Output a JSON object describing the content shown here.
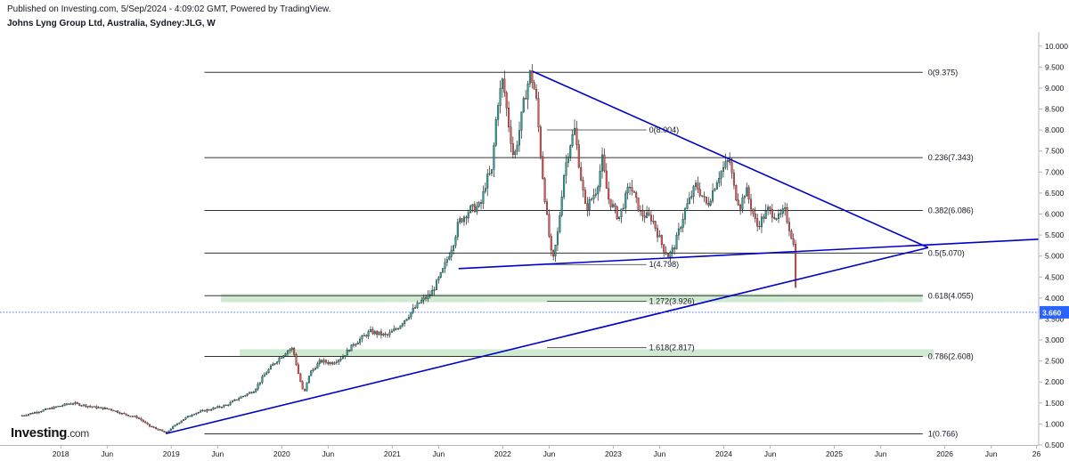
{
  "header": {
    "published": "Published on Investing.com, 5/Sep/2024 - 4:09:02 GMT, Powered by TradingView.",
    "symbol_title": "Johns Lyng Group Ltd, Australia, Sydney:JLG, W"
  },
  "logo": {
    "brand": "Investing",
    "suffix": ".com"
  },
  "chart_data": {
    "type": "candlestick",
    "interval": "W",
    "x_tick_labels": [
      "2018",
      "Jun",
      "2019",
      "Jun",
      "2020",
      "Jun",
      "2021",
      "Jun",
      "2022",
      "Jun",
      "2023",
      "Jun",
      "2024",
      "Jun",
      "2025",
      "Jun",
      "2026",
      "Jun",
      "26"
    ],
    "x_ticks": [
      "2018.0",
      "2018.42",
      "2019.0",
      "2019.42",
      "2020.0",
      "2020.42",
      "2021.0",
      "2021.42",
      "2022.0",
      "2022.42",
      "2023.0",
      "2023.42",
      "2024.0",
      "2024.42",
      "2025.0",
      "2025.42",
      "2026.0",
      "2026.42",
      "2026.83"
    ],
    "x_range": [
      2017.45,
      2026.85
    ],
    "y_range": [
      0.5,
      10.25
    ],
    "y_tick_labels": [
      "0.500",
      "1.000",
      "1.500",
      "2.000",
      "2.500",
      "3.000",
      "3.500",
      "4.000",
      "4.500",
      "5.000",
      "5.500",
      "6.000",
      "6.500",
      "7.000",
      "7.500",
      "8.000",
      "8.500",
      "9.000",
      "9.500",
      "10.000"
    ],
    "last_price": "3.660",
    "last_price_value": 3.66,
    "colors": {
      "up": "#26a69a",
      "down": "#ef5350",
      "trend": "#0000cc",
      "fib": "#333333",
      "zone": "#c8e6c9",
      "last": "#2962ff"
    },
    "price_path": [
      [
        2017.65,
        1.2
      ],
      [
        2017.8,
        1.3
      ],
      [
        2017.95,
        1.4
      ],
      [
        2018.1,
        1.5
      ],
      [
        2018.2,
        1.45
      ],
      [
        2018.3,
        1.4
      ],
      [
        2018.45,
        1.35
      ],
      [
        2018.55,
        1.25
      ],
      [
        2018.7,
        1.15
      ],
      [
        2018.8,
        0.95
      ],
      [
        2018.9,
        0.85
      ],
      [
        2018.95,
        0.78
      ],
      [
        2019.0,
        0.9
      ],
      [
        2019.1,
        1.1
      ],
      [
        2019.2,
        1.25
      ],
      [
        2019.35,
        1.35
      ],
      [
        2019.5,
        1.45
      ],
      [
        2019.6,
        1.6
      ],
      [
        2019.75,
        1.8
      ],
      [
        2019.85,
        2.2
      ],
      [
        2019.95,
        2.5
      ],
      [
        2020.05,
        2.75
      ],
      [
        2020.1,
        2.8
      ],
      [
        2020.15,
        2.2
      ],
      [
        2020.2,
        1.7
      ],
      [
        2020.25,
        2.2
      ],
      [
        2020.35,
        2.5
      ],
      [
        2020.45,
        2.45
      ],
      [
        2020.55,
        2.6
      ],
      [
        2020.65,
        2.9
      ],
      [
        2020.8,
        3.2
      ],
      [
        2020.95,
        3.1
      ],
      [
        2021.05,
        3.3
      ],
      [
        2021.15,
        3.6
      ],
      [
        2021.25,
        3.9
      ],
      [
        2021.35,
        4.1
      ],
      [
        2021.45,
        4.6
      ],
      [
        2021.55,
        5.3
      ],
      [
        2021.6,
        5.8
      ],
      [
        2021.7,
        6.1
      ],
      [
        2021.8,
        6.2
      ],
      [
        2021.85,
        6.8
      ],
      [
        2021.9,
        7.0
      ],
      [
        2021.95,
        8.6
      ],
      [
        2022.0,
        9.2
      ],
      [
        2022.05,
        8.2
      ],
      [
        2022.1,
        7.3
      ],
      [
        2022.15,
        8.0
      ],
      [
        2022.2,
        8.8
      ],
      [
        2022.25,
        9.375
      ],
      [
        2022.3,
        8.8
      ],
      [
        2022.35,
        7.2
      ],
      [
        2022.4,
        5.9
      ],
      [
        2022.45,
        4.8
      ],
      [
        2022.5,
        5.6
      ],
      [
        2022.55,
        6.9
      ],
      [
        2022.6,
        7.6
      ],
      [
        2022.65,
        8.004
      ],
      [
        2022.7,
        7.0
      ],
      [
        2022.75,
        6.1
      ],
      [
        2022.85,
        6.6
      ],
      [
        2022.9,
        7.3
      ],
      [
        2022.95,
        6.4
      ],
      [
        2023.05,
        5.9
      ],
      [
        2023.15,
        6.7
      ],
      [
        2023.25,
        6.0
      ],
      [
        2023.35,
        5.9
      ],
      [
        2023.45,
        5.2
      ],
      [
        2023.5,
        5.0
      ],
      [
        2023.55,
        5.2
      ],
      [
        2023.65,
        6.1
      ],
      [
        2023.75,
        6.7
      ],
      [
        2023.85,
        6.2
      ],
      [
        2023.95,
        6.9
      ],
      [
        2024.05,
        7.3
      ],
      [
        2024.1,
        6.5
      ],
      [
        2024.15,
        6.2
      ],
      [
        2024.2,
        6.6
      ],
      [
        2024.3,
        5.7
      ],
      [
        2024.4,
        6.1
      ],
      [
        2024.5,
        5.9
      ],
      [
        2024.55,
        6.1
      ],
      [
        2024.6,
        5.6
      ],
      [
        2024.63,
        5.3
      ],
      [
        2024.655,
        4.1
      ],
      [
        2024.665,
        3.66
      ]
    ],
    "fib_levels": [
      {
        "label": "0(9.375)",
        "value": 9.375,
        "x_start": 2019.3,
        "x_end": 2025.8
      },
      {
        "label": "0.236(7.343)",
        "value": 7.343,
        "x_start": 2019.3,
        "x_end": 2025.8
      },
      {
        "label": "0.382(6.086)",
        "value": 6.086,
        "x_start": 2019.3,
        "x_end": 2025.8
      },
      {
        "label": "0.5(5.070)",
        "value": 5.07,
        "x_start": 2019.3,
        "x_end": 2025.8
      },
      {
        "label": "0.618(4.055)",
        "value": 4.055,
        "x_start": 2019.3,
        "x_end": 2025.8
      },
      {
        "label": "0.786(2.608)",
        "value": 2.608,
        "x_start": 2019.3,
        "x_end": 2025.8
      },
      {
        "label": "1(0.766)",
        "value": 0.766,
        "x_start": 2019.3,
        "x_end": 2025.8
      }
    ],
    "fib_extension": [
      {
        "label": "0(8.004)",
        "value": 8.004,
        "x_start": 2022.4,
        "x_end": 2023.3
      },
      {
        "label": "1(4.798)",
        "value": 4.798,
        "x_start": 2022.4,
        "x_end": 2023.3
      },
      {
        "label": "1.272(3.926)",
        "value": 3.926,
        "x_start": 2022.4,
        "x_end": 2023.3
      },
      {
        "label": "1.618(2.817)",
        "value": 2.817,
        "x_start": 2022.4,
        "x_end": 2023.3
      }
    ],
    "zones": [
      {
        "x_start": 2019.45,
        "x_end": 2025.8,
        "y_low": 3.9,
        "y_high": 4.1
      },
      {
        "x_start": 2019.62,
        "x_end": 2025.9,
        "y_low": 2.6,
        "y_high": 2.78
      }
    ],
    "trendlines": [
      {
        "from": [
          2022.27,
          9.4
        ],
        "to": [
          2025.85,
          5.2
        ]
      },
      {
        "from": [
          2018.95,
          0.77
        ],
        "to": [
          2025.85,
          5.2
        ]
      },
      {
        "from": [
          2021.6,
          4.7
        ],
        "to": [
          2026.85,
          5.4
        ]
      }
    ]
  }
}
